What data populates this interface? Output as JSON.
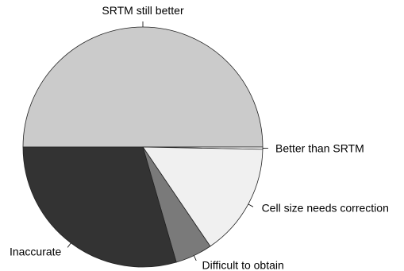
{
  "chart_data": {
    "type": "pie",
    "title": "",
    "categories": [
      "SRTM still better",
      "Better than SRTM",
      "Cell size needs correction",
      "Difficult to obtain",
      "Inaccurate"
    ],
    "values": [
      50,
      0.3,
      15.2,
      5,
      29.5
    ],
    "colors": [
      "#cbcbcb",
      "#ffffff",
      "#f0f0f0",
      "#7a7a7a",
      "#333333"
    ],
    "slice_outline": "#222222",
    "start": "left (9 o'clock), proceeding clockwise",
    "legend": "none; labels placed outside slices with leader ticks"
  }
}
